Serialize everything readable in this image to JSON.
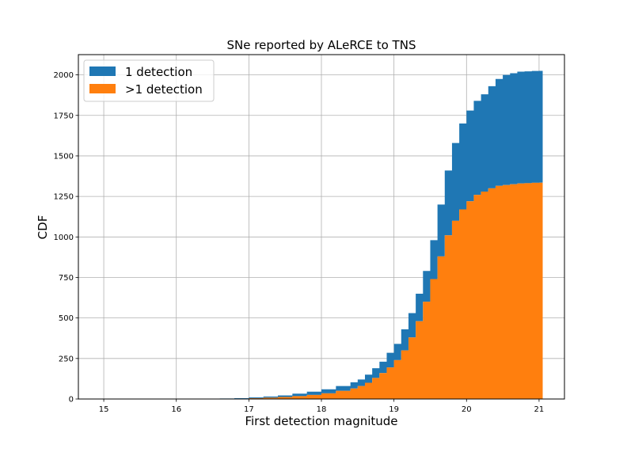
{
  "chart_data": {
    "type": "area",
    "title": "SNe reported by ALeRCE to TNS",
    "xlabel": "First detection magnitude",
    "ylabel": "CDF",
    "xlim": [
      14.65,
      21.35
    ],
    "ylim": [
      0,
      2125
    ],
    "xticks": [
      15,
      16,
      17,
      18,
      19,
      20,
      21
    ],
    "yticks": [
      0,
      250,
      500,
      750,
      1000,
      1250,
      1500,
      1750,
      2000
    ],
    "grid": true,
    "stacked": true,
    "step": true,
    "legend_position": "top-left",
    "x": [
      16.4,
      16.6,
      16.8,
      17.0,
      17.2,
      17.4,
      17.6,
      17.8,
      18.0,
      18.2,
      18.4,
      18.5,
      18.6,
      18.7,
      18.8,
      18.9,
      19.0,
      19.1,
      19.2,
      19.3,
      19.4,
      19.5,
      19.6,
      19.7,
      19.8,
      19.9,
      20.0,
      20.1,
      20.2,
      20.3,
      20.4,
      20.5,
      20.6,
      20.7,
      20.8,
      20.9,
      21.0,
      21.05
    ],
    "series": [
      {
        "name": ">1 detection",
        "color": "#ff7f0e",
        "values": [
          0,
          1,
          2,
          5,
          8,
          12,
          18,
          25,
          35,
          50,
          65,
          80,
          100,
          130,
          160,
          195,
          240,
          300,
          380,
          480,
          600,
          740,
          880,
          1010,
          1100,
          1170,
          1220,
          1260,
          1280,
          1300,
          1315,
          1320,
          1325,
          1330,
          1332,
          1334,
          1335,
          1335
        ]
      },
      {
        "name": "1 detection",
        "color": "#1f77b4",
        "values": [
          2,
          2,
          3,
          5,
          7,
          10,
          15,
          20,
          25,
          30,
          38,
          40,
          50,
          60,
          70,
          90,
          100,
          130,
          150,
          170,
          190,
          240,
          320,
          400,
          480,
          530,
          560,
          580,
          600,
          630,
          660,
          680,
          685,
          690,
          690,
          690,
          690,
          690
        ]
      }
    ]
  }
}
